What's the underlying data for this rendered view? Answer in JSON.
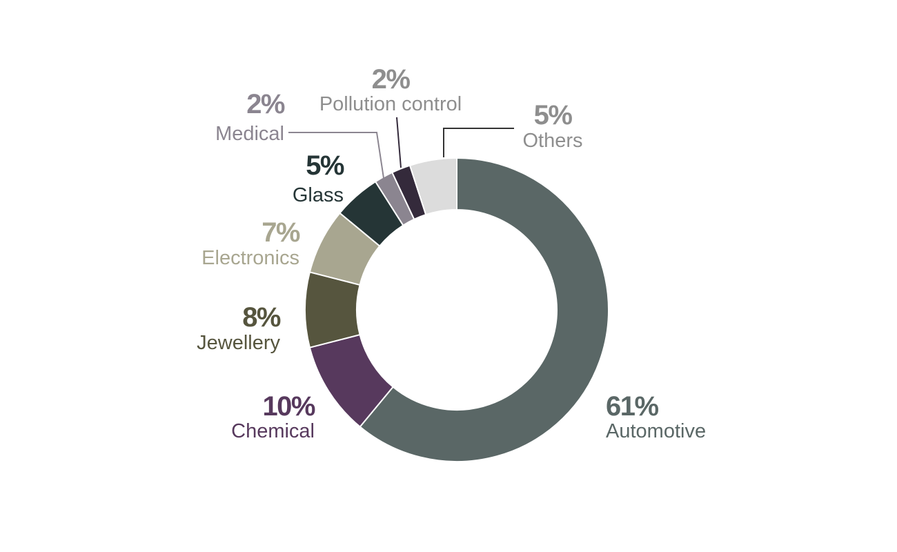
{
  "chart_data": {
    "type": "pie",
    "variant": "donut",
    "title": "",
    "slices": [
      {
        "label": "Automotive",
        "value": 61,
        "display": "61%",
        "color": "#5a6766"
      },
      {
        "label": "Chemical",
        "value": 10,
        "display": "10%",
        "color": "#57395d"
      },
      {
        "label": "Jewellery",
        "value": 8,
        "display": "8%",
        "color": "#56553e"
      },
      {
        "label": "Electronics",
        "value": 7,
        "display": "7%",
        "color": "#a8a690"
      },
      {
        "label": "Glass",
        "value": 5,
        "display": "5%",
        "color": "#253536"
      },
      {
        "label": "Medical",
        "value": 2,
        "display": "2%",
        "color": "#8b8590"
      },
      {
        "label": "Pollution control",
        "value": 2,
        "display": "2%",
        "color": "#342a3b"
      },
      {
        "label": "Others",
        "value": 5,
        "display": "5%",
        "color": "#dcdcdc"
      }
    ],
    "label_colors": {
      "Automotive": "#5a6766",
      "Chemical": "#57395d",
      "Jewellery": "#56553e",
      "Electronics": "#a8a690",
      "Glass": "#253536",
      "Medical": "#8b8590",
      "Pollution control": "#8e8e8e",
      "Others": "#8e8e8e"
    },
    "start": "top",
    "direction": "clockwise"
  }
}
